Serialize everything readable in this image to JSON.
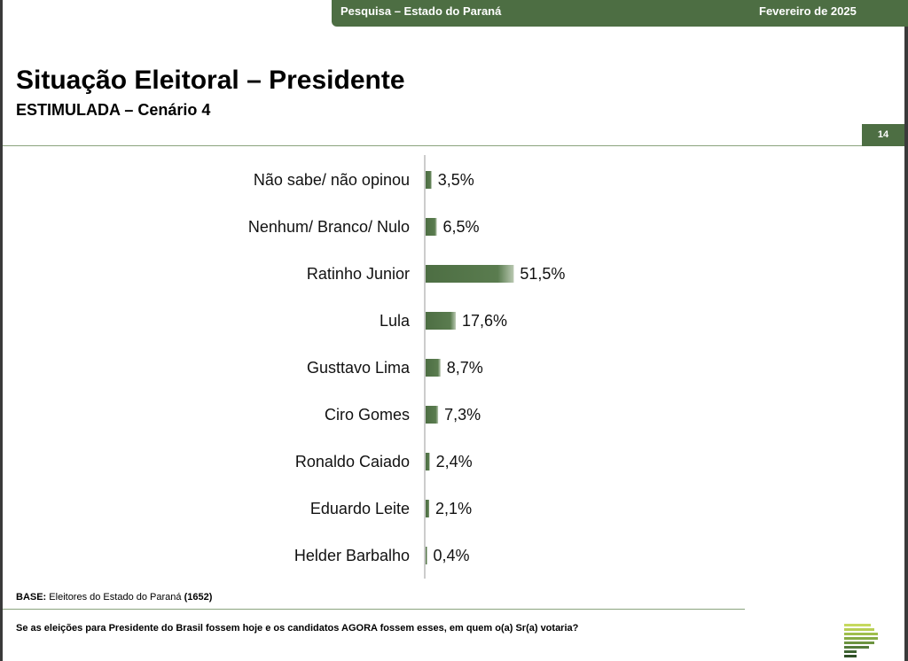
{
  "header": {
    "left_text": "Pesquisa – Estado do Paraná",
    "right_text": "Fevereiro de 2025"
  },
  "page": {
    "title": "Situação Eleitoral – Presidente",
    "subtitle": "ESTIMULADA – Cenário 4",
    "number": "14"
  },
  "chart_data": {
    "type": "bar",
    "orientation": "horizontal",
    "categories": [
      "Não sabe/ não opinou",
      "Nenhum/ Branco/ Nulo",
      "Ratinho Junior",
      "Lula",
      "Gusttavo Lima",
      "Ciro Gomes",
      "Ronaldo Caiado",
      "Eduardo Leite",
      "Helder Barbalho"
    ],
    "values": [
      3.5,
      6.5,
      51.5,
      17.6,
      8.7,
      7.3,
      2.4,
      2.1,
      0.4
    ],
    "value_labels": [
      "3,5%",
      "6,5%",
      "51,5%",
      "17,6%",
      "8,7%",
      "7,3%",
      "2,4%",
      "2,1%",
      "0,4%"
    ],
    "xlim": [
      0,
      100
    ],
    "bar_color": "#4d6e43",
    "grid": false,
    "legend": "none"
  },
  "footer": {
    "base_label": "BASE:",
    "base_text": " Eleitores do Estado do Paraná ",
    "base_count": "(1652)",
    "question": "Se as eleições para Presidente do Brasil fossem hoje e os candidatos AGORA fossem esses, em quem o(a) Sr(a) votaria?"
  },
  "colors": {
    "accent": "#4d6e43",
    "logo_light": "#c6d95e"
  }
}
